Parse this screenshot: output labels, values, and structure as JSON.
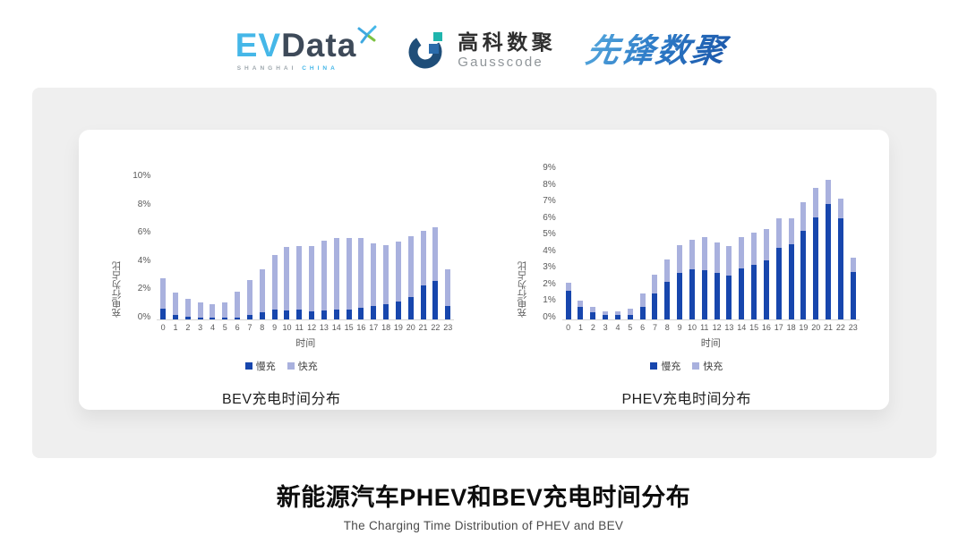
{
  "header": {
    "evdata": {
      "main_ev": "EV",
      "main_data": "Data",
      "sub_left": "SHANGHAI",
      "sub_right": "CHINA"
    },
    "gausscode": {
      "cn": "高科数聚",
      "en": "Gausscode"
    },
    "pioneer": {
      "text": "先锋数聚"
    }
  },
  "colors": {
    "slow_charge": "#1746ad",
    "fast_charge": "#a9b1de",
    "evdata_blue": "#45b7e8",
    "evdata_dark": "#3e4a59",
    "gauss_navy": "#1f4e79",
    "gauss_teal": "#1fb5ad",
    "gauss_blue": "#2b6cab",
    "pioneer_blue": "#2a6fbe",
    "panel_gray": "#efefef",
    "axis_text": "#595959"
  },
  "chart_data": [
    {
      "type": "bar",
      "stacked": true,
      "title": "BEV充电时间分布",
      "ylabel": "充电行为占比",
      "xlabel": "时间",
      "ylim": [
        0,
        10
      ],
      "y_ticks": [
        "10%",
        "8%",
        "6%",
        "4%",
        "2%",
        "0%"
      ],
      "grid": false,
      "legend_position": "bottom",
      "categories": [
        "0",
        "1",
        "2",
        "3",
        "4",
        "5",
        "6",
        "7",
        "8",
        "9",
        "10",
        "11",
        "12",
        "13",
        "14",
        "15",
        "16",
        "17",
        "18",
        "19",
        "20",
        "21",
        "22",
        "23"
      ],
      "series": [
        {
          "name": "慢充",
          "color": "#1746ad",
          "values": [
            0.75,
            0.35,
            0.2,
            0.1,
            0.1,
            0.1,
            0.15,
            0.35,
            0.5,
            0.7,
            0.65,
            0.7,
            0.6,
            0.65,
            0.7,
            0.7,
            0.8,
            0.95,
            1.1,
            1.3,
            1.6,
            2.4,
            2.75,
            0.95
          ]
        },
        {
          "name": "快充",
          "color": "#a9b1de",
          "values": [
            2.15,
            1.55,
            1.3,
            1.1,
            1.0,
            1.1,
            1.85,
            2.45,
            3.05,
            3.9,
            4.5,
            4.5,
            4.6,
            4.95,
            5.1,
            5.1,
            5.0,
            4.5,
            4.2,
            4.25,
            4.3,
            3.9,
            3.8,
            2.6
          ]
        }
      ]
    },
    {
      "type": "bar",
      "stacked": true,
      "title": "PHEV充电时间分布",
      "ylabel": "充电行为占比",
      "xlabel": "时间",
      "ylim": [
        0,
        9
      ],
      "y_ticks": [
        "9%",
        "8%",
        "7%",
        "6%",
        "5%",
        "4%",
        "3%",
        "2%",
        "1%",
        "0%"
      ],
      "grid": false,
      "legend_position": "bottom",
      "categories": [
        "0",
        "1",
        "2",
        "3",
        "4",
        "5",
        "6",
        "7",
        "8",
        "9",
        "10",
        "11",
        "12",
        "13",
        "14",
        "15",
        "16",
        "17",
        "18",
        "19",
        "20",
        "21",
        "22",
        "23"
      ],
      "series": [
        {
          "name": "慢充",
          "color": "#1746ad",
          "values": [
            1.75,
            0.75,
            0.45,
            0.25,
            0.25,
            0.3,
            0.75,
            1.6,
            2.3,
            2.8,
            3.05,
            3.0,
            2.8,
            2.65,
            3.1,
            3.3,
            3.6,
            4.35,
            4.55,
            5.35,
            6.2,
            7.0,
            6.15,
            2.9
          ]
        },
        {
          "name": "快充",
          "color": "#a9b1de",
          "values": [
            0.45,
            0.4,
            0.3,
            0.25,
            0.25,
            0.35,
            0.85,
            1.1,
            1.35,
            1.7,
            1.75,
            2.0,
            1.85,
            1.8,
            1.9,
            1.95,
            1.9,
            1.8,
            1.6,
            1.75,
            1.75,
            1.45,
            1.2,
            0.85
          ]
        }
      ]
    }
  ],
  "footer": {
    "title": "新能源汽车PHEV和BEV充电时间分布",
    "subtitle": "The Charging Time Distribution of PHEV and BEV"
  }
}
